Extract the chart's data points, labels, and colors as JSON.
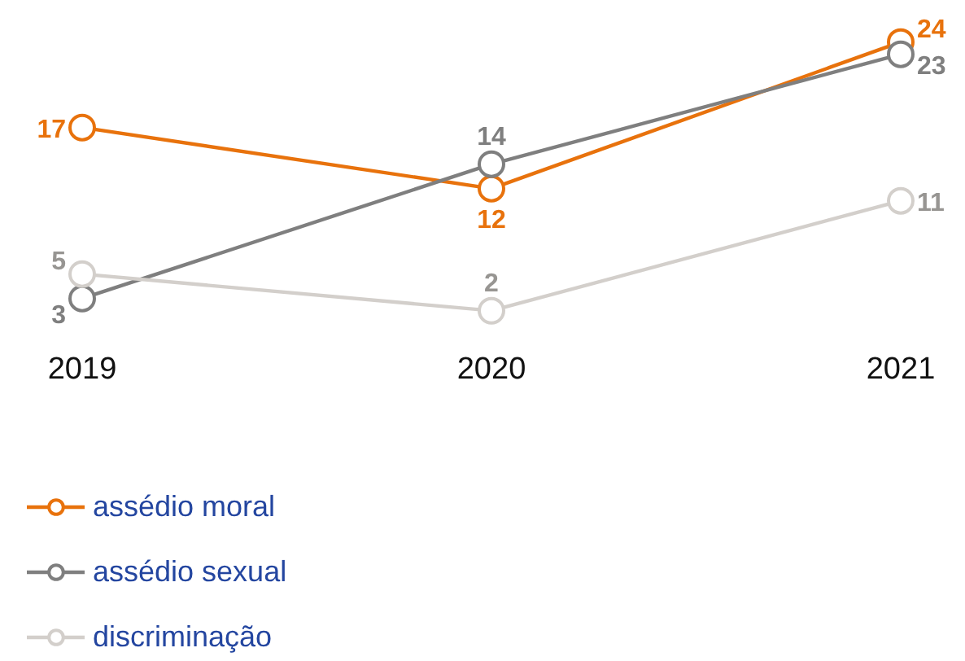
{
  "chart_data": {
    "type": "line",
    "categories": [
      "2019",
      "2020",
      "2021"
    ],
    "series": [
      {
        "name": "assédio moral",
        "color": "#e8720c",
        "values": [
          17,
          12,
          24
        ]
      },
      {
        "name": "assédio sexual",
        "color": "#7f7f7f",
        "values": [
          3,
          14,
          23
        ]
      },
      {
        "name": "discriminação",
        "color": "#d3cfcb",
        "values": [
          5,
          2,
          11
        ]
      }
    ],
    "data_labels": true,
    "marker": "circle",
    "line_style": "solid",
    "legend": "bottom",
    "tick_labels": "x"
  }
}
